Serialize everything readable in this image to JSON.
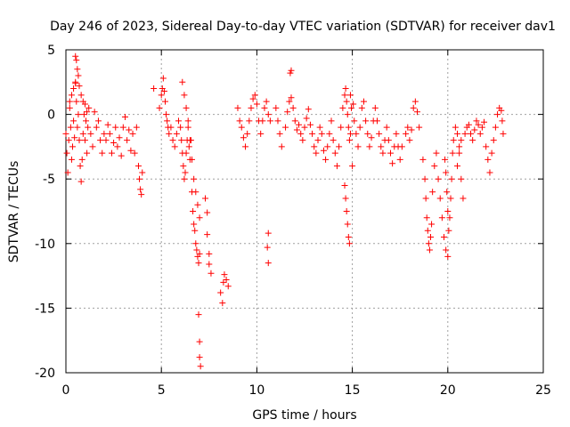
{
  "chart_data": {
    "type": "scatter",
    "title": "Day 246 of 2023, Sidereal Day-to-day VTEC variation (SDTVAR) for receiver dav1",
    "xlabel": "GPS time / hours",
    "ylabel": "SDTVAR / TECUs",
    "xlim": [
      0,
      25
    ],
    "ylim": [
      -20,
      5
    ],
    "xticks": [
      0,
      5,
      10,
      15,
      20,
      25
    ],
    "yticks": [
      5,
      0,
      -5,
      -10,
      -15,
      -20
    ],
    "grid": true,
    "marker": "+",
    "marker_color": "#ff0000",
    "series": [
      {
        "name": "SDTVAR",
        "x": [
          0.0,
          0.05,
          0.1,
          0.15,
          0.2,
          0.25,
          0.3,
          0.35,
          0.4,
          0.45,
          0.5,
          0.55,
          0.6,
          0.65,
          0.7,
          0.75,
          0.8,
          0.85,
          0.9,
          0.95,
          1.0,
          1.05,
          1.1,
          1.15,
          1.2,
          1.3,
          1.4,
          1.5,
          1.6,
          1.7,
          1.8,
          1.9,
          2.0,
          2.1,
          2.2,
          2.3,
          2.4,
          2.5,
          2.6,
          2.7,
          2.8,
          2.9,
          3.0,
          3.1,
          3.2,
          3.3,
          3.4,
          3.5,
          3.6,
          3.7,
          3.8,
          3.85,
          3.9,
          3.95,
          4.0,
          0.5,
          0.55,
          0.6,
          0.65,
          0.7,
          0.8,
          0.9,
          1.0,
          1.1,
          0.2,
          0.3,
          0.4,
          0.5,
          4.6,
          4.9,
          5.0,
          5.05,
          5.1,
          5.15,
          5.2,
          5.25,
          5.3,
          5.35,
          5.4,
          5.5,
          5.6,
          5.7,
          5.8,
          5.9,
          6.0,
          6.05,
          6.1,
          6.15,
          6.2,
          6.25,
          6.3,
          6.35,
          6.4,
          6.45,
          6.5,
          6.55,
          6.6,
          6.65,
          6.7,
          6.75,
          6.8,
          6.85,
          6.9,
          6.95,
          7.0,
          6.1,
          6.2,
          6.3,
          6.4,
          6.5,
          6.6,
          6.7,
          6.8,
          6.9,
          7.0,
          7.3,
          7.4,
          7.4,
          7.5,
          7.5,
          7.6,
          6.95,
          7.0,
          7.0,
          7.05,
          8.1,
          8.2,
          8.25,
          8.3,
          8.4,
          8.5,
          9.0,
          9.1,
          9.2,
          9.3,
          9.4,
          9.5,
          9.6,
          9.7,
          9.8,
          9.9,
          10.0,
          10.1,
          10.2,
          10.3,
          10.4,
          10.5,
          10.6,
          10.7,
          10.6,
          10.55,
          10.6,
          11.0,
          11.1,
          11.2,
          11.3,
          11.5,
          11.6,
          11.7,
          11.8,
          11.9,
          11.75,
          11.8,
          12.0,
          12.1,
          12.2,
          12.3,
          12.4,
          12.5,
          12.6,
          12.7,
          12.8,
          12.9,
          13.0,
          13.1,
          13.2,
          13.3,
          13.4,
          13.5,
          13.6,
          13.7,
          13.8,
          13.9,
          14.0,
          14.1,
          14.2,
          14.3,
          14.4,
          14.5,
          14.6,
          14.65,
          14.7,
          14.75,
          14.8,
          14.85,
          14.9,
          14.95,
          15.0,
          14.6,
          14.65,
          14.7,
          14.75,
          14.8,
          14.85,
          14.9,
          15.05,
          15.1,
          15.2,
          15.3,
          15.4,
          15.5,
          15.6,
          15.7,
          15.8,
          15.9,
          16.0,
          16.1,
          16.2,
          16.3,
          16.4,
          16.5,
          16.6,
          16.7,
          16.8,
          16.9,
          17.0,
          17.1,
          17.2,
          17.3,
          17.4,
          17.5,
          17.6,
          17.8,
          17.9,
          18.0,
          18.1,
          18.2,
          18.3,
          18.4,
          18.5,
          18.7,
          18.8,
          18.85,
          18.9,
          18.95,
          19.0,
          19.05,
          19.1,
          19.15,
          19.2,
          19.3,
          19.4,
          19.5,
          19.6,
          19.7,
          19.8,
          19.9,
          20.0,
          19.85,
          19.9,
          19.95,
          20.0,
          20.05,
          20.1,
          20.15,
          20.2,
          20.25,
          20.3,
          20.4,
          20.5,
          20.6,
          20.7,
          20.8,
          20.5,
          20.6,
          20.7,
          20.9,
          21.0,
          21.1,
          21.2,
          21.3,
          21.4,
          21.5,
          21.6,
          21.7,
          21.8,
          21.9,
          22.0,
          22.1,
          22.2,
          22.3,
          22.4,
          22.5,
          22.6,
          22.7,
          22.8,
          22.85,
          22.9
        ],
        "y": [
          -1.5,
          -3.0,
          -4.5,
          -2.0,
          0.5,
          -1.0,
          -3.5,
          -2.5,
          -0.5,
          -1.8,
          2.5,
          1.0,
          -1.0,
          0.0,
          -2.0,
          -4.0,
          -5.2,
          -3.5,
          -1.5,
          0.0,
          -2.0,
          -0.5,
          -3.0,
          -1.0,
          0.5,
          -1.5,
          -2.5,
          0.2,
          -1.0,
          -0.5,
          -2.0,
          -3.0,
          -1.5,
          -2.0,
          -0.8,
          -1.5,
          -3.0,
          -2.2,
          -1.0,
          -2.5,
          -1.8,
          -3.2,
          -1.0,
          -0.2,
          -2.0,
          -1.2,
          -2.8,
          -1.5,
          -3.0,
          -1.0,
          -4.0,
          -5.0,
          -5.8,
          -6.2,
          -4.5,
          4.5,
          4.2,
          3.5,
          3.0,
          2.2,
          1.5,
          1.0,
          0.8,
          0.2,
          1.0,
          1.5,
          2.0,
          2.4,
          2.0,
          0.5,
          1.5,
          2.0,
          2.8,
          1.8,
          1.0,
          0.0,
          -0.5,
          -1.0,
          -1.5,
          -1.0,
          -2.0,
          -2.5,
          -1.5,
          -0.5,
          -1.0,
          -2.0,
          -3.0,
          -4.0,
          -5.0,
          -4.5,
          -3.0,
          -2.0,
          -1.0,
          -2.5,
          -3.5,
          -2.0,
          -6.0,
          -7.5,
          -8.5,
          -9.0,
          -10.0,
          -10.5,
          -11.0,
          -11.5,
          -10.8,
          2.5,
          1.5,
          0.5,
          -0.5,
          -2.0,
          -3.5,
          -5.0,
          -6.0,
          -7.0,
          -8.0,
          -6.5,
          -7.6,
          -9.3,
          -10.8,
          -11.6,
          -12.3,
          -15.5,
          -17.6,
          -18.8,
          -19.5,
          -13.8,
          -14.6,
          -13.0,
          -12.4,
          -12.8,
          -13.3,
          0.5,
          -0.5,
          -1.0,
          -1.8,
          -2.5,
          -1.5,
          -0.5,
          0.5,
          1.2,
          1.5,
          0.8,
          -0.5,
          -1.5,
          -0.5,
          0.5,
          1.0,
          0.0,
          -0.5,
          -9.2,
          -10.3,
          -11.5,
          0.5,
          -0.5,
          -1.5,
          -2.5,
          -1.0,
          0.2,
          1.0,
          1.3,
          0.5,
          3.2,
          3.4,
          -0.5,
          -1.2,
          -0.8,
          -1.5,
          -2.0,
          -1.0,
          -0.3,
          0.4,
          -0.8,
          -1.5,
          -2.5,
          -3.0,
          -2.0,
          -1.0,
          -1.5,
          -2.8,
          -3.5,
          -2.5,
          -1.5,
          -0.5,
          -2.0,
          -3.0,
          -4.0,
          -2.5,
          -1.0,
          0.5,
          1.5,
          2.0,
          1.0,
          0.0,
          -1.0,
          -2.0,
          -1.5,
          0.5,
          -4.0,
          -5.5,
          -6.5,
          -7.5,
          -8.5,
          -9.5,
          -10.0,
          1.5,
          0.8,
          -0.5,
          -1.5,
          -2.5,
          -1.0,
          0.5,
          1.0,
          -0.5,
          -1.5,
          -2.5,
          -1.8,
          -0.5,
          0.5,
          -0.5,
          -1.5,
          -2.5,
          -3.0,
          -2.0,
          -1.0,
          -2.0,
          -3.0,
          -3.8,
          -2.5,
          -1.5,
          -2.5,
          -3.5,
          -2.5,
          -1.5,
          -1.0,
          -2.0,
          -1.2,
          0.5,
          1.0,
          0.2,
          -1.0,
          -3.5,
          -5.0,
          -6.5,
          -8.0,
          -9.0,
          -10.0,
          -10.5,
          -9.5,
          -8.5,
          -6.0,
          -4.0,
          -3.0,
          -5.0,
          -6.5,
          -8.0,
          -9.5,
          -10.5,
          -11.0,
          -3.5,
          -4.5,
          -6.0,
          -7.5,
          -9.0,
          -8.0,
          -6.5,
          -5.0,
          -3.0,
          -2.0,
          -1.0,
          -1.5,
          -2.5,
          -5.0,
          -6.5,
          -4.0,
          -3.0,
          -2.0,
          -1.5,
          -1.0,
          -0.8,
          -1.5,
          -2.0,
          -1.2,
          -0.5,
          -0.8,
          -1.5,
          -1.0,
          -0.6,
          -2.5,
          -3.5,
          -4.5,
          -3.0,
          -2.0,
          -1.0,
          0.0,
          0.5,
          0.3,
          -0.5,
          -1.5
        ]
      }
    ]
  }
}
